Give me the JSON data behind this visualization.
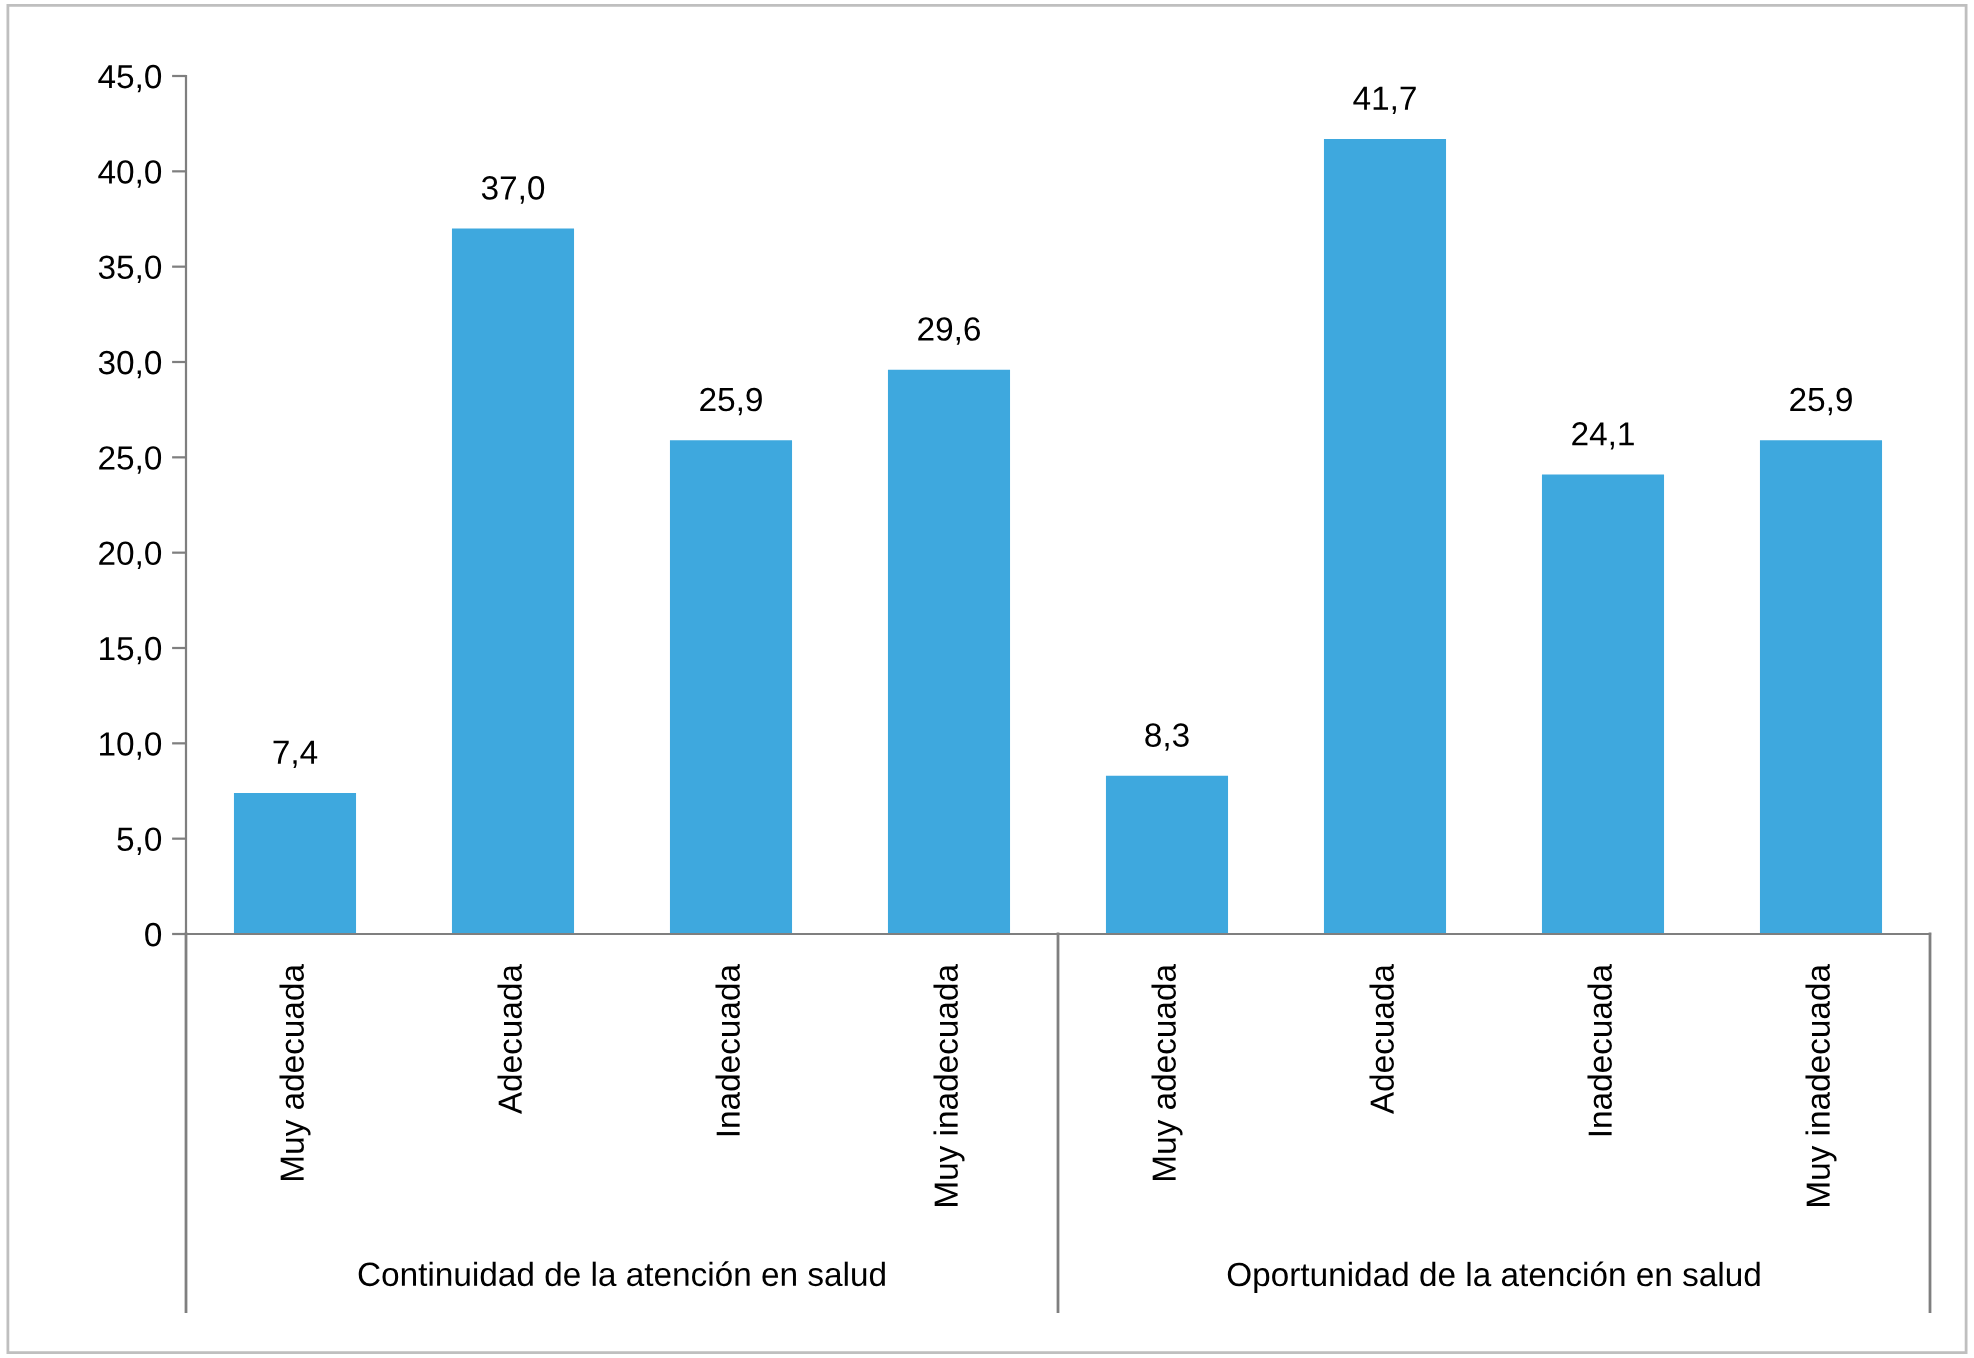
{
  "chart_data": {
    "type": "bar",
    "categories": [
      "Muy adecuada",
      "Adecuada",
      "Inadecuada",
      "Muy inadecuada",
      "Muy adecuada",
      "Adecuada",
      "Inadecuada",
      "Muy inadecuada"
    ],
    "values": [
      7.4,
      37.0,
      25.9,
      29.6,
      8.3,
      41.7,
      24.1,
      25.9
    ],
    "value_labels": [
      "7,4",
      "37,0",
      "25,9",
      "29,6",
      "8,3",
      "41,7",
      "24,1",
      "25,9"
    ],
    "color": "#3ea8de",
    "ylim": [
      0,
      45
    ],
    "yticks": [
      {
        "value": 0,
        "label": "0"
      },
      {
        "value": 5,
        "label": "5,0"
      },
      {
        "value": 10,
        "label": "10,0"
      },
      {
        "value": 15,
        "label": "15,0"
      },
      {
        "value": 20,
        "label": "20,0"
      },
      {
        "value": 25,
        "label": "25,0"
      },
      {
        "value": 30,
        "label": "30,0"
      },
      {
        "value": 35,
        "label": "35,0"
      },
      {
        "value": 40,
        "label": "40,0"
      },
      {
        "value": 45,
        "label": "45,0"
      }
    ],
    "annotations": [
      "Continuidad de la atención en salud",
      "Oportunidad de la atención en salud"
    ],
    "grid": false,
    "legend": false
  }
}
